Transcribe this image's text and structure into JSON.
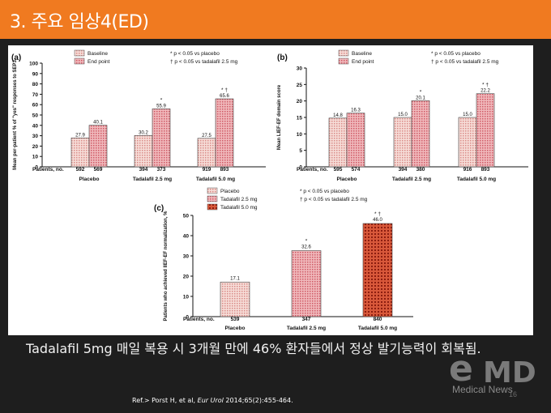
{
  "slide": {
    "title": "3. 주요 임상4(ED)",
    "caption": "Tadalafil 5mg 매일 복용 시 3개월 만에 46% 환자들에서 정상 발기능력이 회복됨.",
    "reference_prefix": "Ref.> Porst H, et al, ",
    "reference_journal": "Eur Urol",
    "reference_suffix": " 2014;65(2):455-464.",
    "logo_e": "e",
    "logo_md": "MD",
    "logo_sub": "Medical News",
    "page_number": "16"
  },
  "colors": {
    "orange_bar": "#f07a20",
    "panel_bg": "#ffffff",
    "baseline_fill": "#efc7c0",
    "endpoint_fill": "#e89aa0",
    "t25_fill": "#e3a5a8",
    "t50_fill": "#c23a1e"
  },
  "chart_data": [
    {
      "type": "bar",
      "panel_label": "(a)",
      "ylabel": "Mean per-patient % of \"yes\" responses to SEP3",
      "ylim": [
        0,
        100
      ],
      "yticks": [
        0,
        10,
        20,
        30,
        40,
        50,
        60,
        70,
        80,
        90,
        100
      ],
      "categories": [
        "Placebo",
        "Tadalafil 2.5 mg",
        "Tadalafil 5.0 mg"
      ],
      "patients_label": "Patients, no.",
      "patients": [
        [
          "592",
          "569"
        ],
        [
          "394",
          "373"
        ],
        [
          "919",
          "893"
        ]
      ],
      "series": [
        {
          "name": "Baseline",
          "values": [
            27.9,
            30.2,
            27.5
          ],
          "labels": [
            "27.9",
            "30.2",
            "27.5"
          ]
        },
        {
          "name": "End point",
          "values": [
            40.1,
            55.9,
            65.6
          ],
          "labels": [
            "40.1",
            "55.9",
            "65.6"
          ]
        }
      ],
      "marks": [
        "",
        "*",
        "* †"
      ],
      "legend_notes": [
        "* p < 0.05 vs placebo",
        "† p < 0.05 vs tadalafil 2.5 mg"
      ]
    },
    {
      "type": "bar",
      "panel_label": "(b)",
      "ylabel": "Mean LIEF-EF domain score",
      "ylim": [
        0,
        30
      ],
      "yticks": [
        0,
        5,
        10,
        15,
        20,
        25,
        30
      ],
      "categories": [
        "Placebo",
        "Tadalafil 2.5 mg",
        "Tadalafil 5.0 mg"
      ],
      "patients_label": "Patients, no.",
      "patients": [
        [
          "595",
          "574"
        ],
        [
          "394",
          "380"
        ],
        [
          "916",
          "893"
        ]
      ],
      "series": [
        {
          "name": "Baseline",
          "values": [
            14.8,
            15.0,
            15.0
          ],
          "labels": [
            "14.8",
            "15.0",
            "15.0"
          ]
        },
        {
          "name": "End point",
          "values": [
            16.3,
            20.1,
            22.2
          ],
          "labels": [
            "16.3",
            "20.1",
            "22.2"
          ]
        }
      ],
      "marks": [
        "",
        "*",
        "* †"
      ],
      "legend_notes": [
        "* p < 0.05 vs placebo",
        "† p < 0.05 vs tadalafil 2.5 mg"
      ]
    },
    {
      "type": "bar",
      "panel_label": "(c)",
      "ylabel": "Patients who achieved IIEF-EF normalization, %",
      "ylim": [
        0,
        50
      ],
      "yticks": [
        0,
        10,
        20,
        30,
        40,
        50
      ],
      "categories": [
        "Placebo",
        "Tadalafil 2.5 mg",
        "Tadalafil 5.0 mg"
      ],
      "patients_label": "Patients, no.",
      "patients": [
        [
          "539"
        ],
        [
          "347"
        ],
        [
          "840"
        ]
      ],
      "series": [
        {
          "name": "Placebo",
          "values": [
            17.1,
            null,
            null
          ]
        },
        {
          "name": "Tadalafil 2.5 mg",
          "values": [
            null,
            32.6,
            null
          ]
        },
        {
          "name": "Tadalafil 5.0 mg",
          "values": [
            null,
            null,
            46.0
          ]
        }
      ],
      "bar_labels": [
        "17.1",
        "32.6",
        "46.0"
      ],
      "marks": [
        "",
        "*",
        "* †"
      ],
      "legend_notes": [
        "* p < 0.05 vs placebo",
        "† p < 0.05 vs tadalafil 2.5 mg"
      ]
    }
  ]
}
